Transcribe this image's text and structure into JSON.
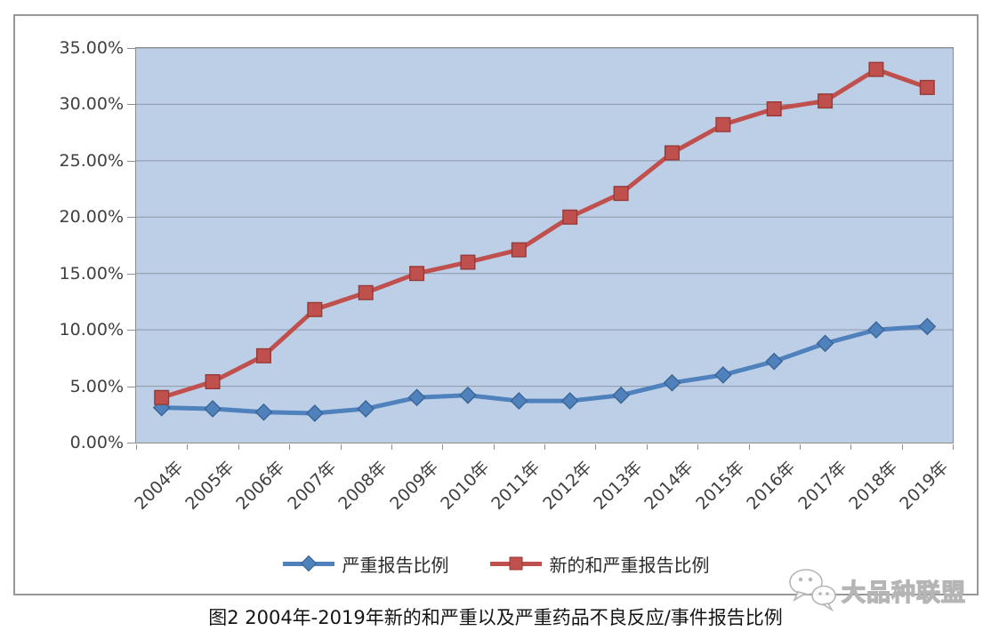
{
  "figure": {
    "title": "图2 2004年-2019年新的和严重以及严重药品不良反应/事件报告比例",
    "watermark_text": "大品种联盟"
  },
  "chart_data": {
    "type": "line",
    "title": "图2 2004年-2019年新的和严重以及严重药品不良反应/事件报告比例",
    "categories": [
      "2004年",
      "2005年",
      "2006年",
      "2007年",
      "2008年",
      "2009年",
      "2010年",
      "2011年",
      "2012年",
      "2013年",
      "2014年",
      "2015年",
      "2016年",
      "2017年",
      "2018年",
      "2019年"
    ],
    "series": [
      {
        "name": "严重报告比例",
        "marker": "diamond",
        "color": "#4f81bd",
        "marker_stroke": "#3a6596",
        "values": [
          3.1,
          3.0,
          2.7,
          2.6,
          3.0,
          4.0,
          4.2,
          3.7,
          3.7,
          4.2,
          5.3,
          6.0,
          7.2,
          8.8,
          10.0,
          10.3
        ]
      },
      {
        "name": "新的和严重报告比例",
        "marker": "square",
        "color": "#c0504d",
        "marker_stroke": "#963a38",
        "values": [
          4.0,
          5.4,
          7.7,
          11.8,
          13.3,
          15.0,
          16.0,
          17.1,
          20.0,
          22.1,
          25.7,
          28.2,
          29.6,
          30.3,
          33.1,
          31.5
        ]
      }
    ],
    "value_unit": "%",
    "ylim": [
      0,
      35
    ],
    "ytick_step": 5,
    "ytick_labels": [
      "0.00%",
      "5.00%",
      "10.00%",
      "15.00%",
      "20.00%",
      "25.00%",
      "30.00%",
      "35.00%"
    ],
    "xlabel": "",
    "ylabel": "",
    "grid": true,
    "legend_position": "bottom",
    "plot_bg": "#bccfe6",
    "grid_color": "#8e99a9",
    "axis_color": "#8c8c8c",
    "tick_label_color": "#3f3f3f"
  }
}
